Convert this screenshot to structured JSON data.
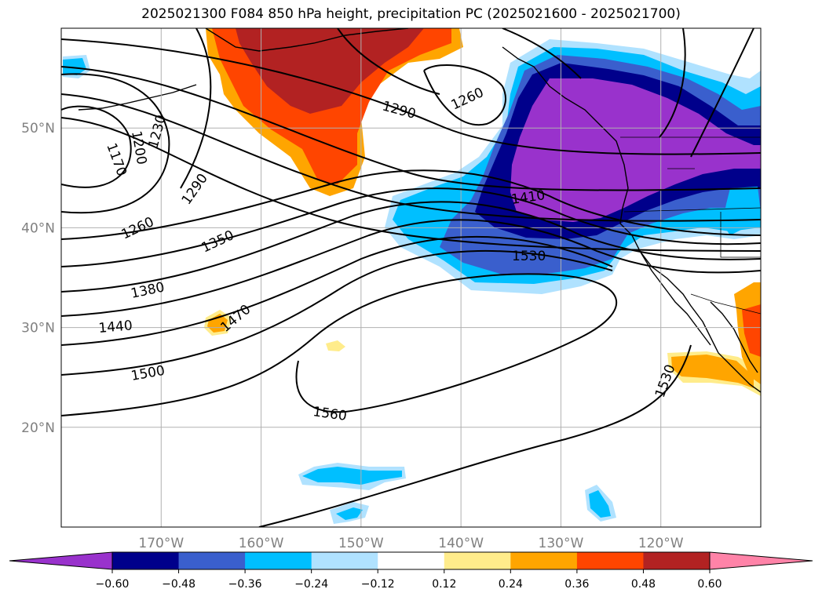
{
  "title": "2025021300 F084 850 hPa height, precipitation PC (2025021600 - 2025021700)",
  "map": {
    "lon_ticks": [
      {
        "label": "170°W",
        "lon": -170
      },
      {
        "label": "160°W",
        "lon": -160
      },
      {
        "label": "150°W",
        "lon": -150
      },
      {
        "label": "140°W",
        "lon": -140
      },
      {
        "label": "130°W",
        "lon": -130
      },
      {
        "label": "120°W",
        "lon": -120
      }
    ],
    "lat_ticks": [
      {
        "label": "50°N",
        "lat": 50
      },
      {
        "label": "40°N",
        "lat": 40
      },
      {
        "label": "30°N",
        "lat": 30
      },
      {
        "label": "20°N",
        "lat": 20
      }
    ],
    "extent": {
      "lon_min": -180,
      "lon_max": -110,
      "lat_min": 10,
      "lat_max": 60
    },
    "contour_labels": [
      "1170",
      "1200",
      "1230",
      "1260",
      "1290",
      "1350",
      "1380",
      "1440",
      "1470",
      "1500",
      "1560",
      "1290",
      "1260",
      "1410",
      "1530",
      "1530"
    ]
  },
  "colorbar": {
    "levels": [
      "−0.60",
      "−0.48",
      "−0.36",
      "−0.24",
      "−0.12",
      "0.12",
      "0.24",
      "0.36",
      "0.48",
      "0.60"
    ],
    "colors": [
      "#9932cc",
      "#00008b",
      "#3a5fcd",
      "#00bfff",
      "#b0e2ff",
      "#ffffff",
      "#ffec8b",
      "#ffa500",
      "#ff4500",
      "#b22222",
      "#ff83a8"
    ]
  }
}
